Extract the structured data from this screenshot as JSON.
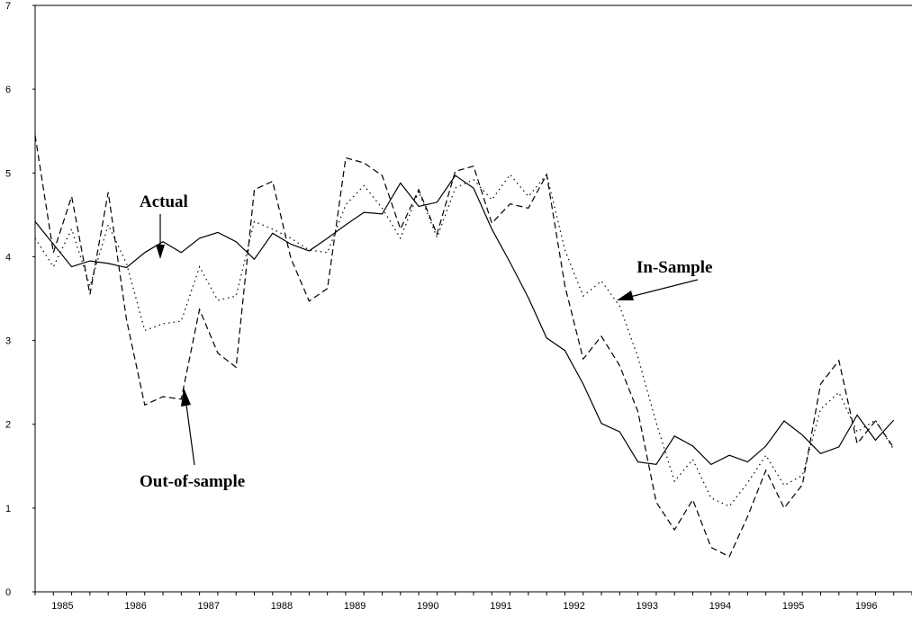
{
  "chart_data": {
    "type": "line",
    "title": "",
    "xlabel": "",
    "ylabel": "",
    "ylim": [
      0,
      7
    ],
    "x_start_year": 1984.75,
    "x_end_year": 1996.75,
    "yticks": [
      "0",
      "1",
      "2",
      "3",
      "4",
      "5",
      "6",
      "7"
    ],
    "xticks": [
      "1985",
      "1986",
      "1987",
      "1988",
      "1989",
      "1990",
      "1991",
      "1992",
      "1993",
      "1994",
      "1995",
      "1996"
    ],
    "grid": false,
    "series": [
      {
        "name": "Actual",
        "style": "solid",
        "values": [
          4.42,
          4.15,
          3.88,
          3.95,
          3.92,
          3.87,
          4.05,
          4.18,
          4.05,
          4.22,
          4.29,
          4.18,
          3.97,
          4.28,
          4.15,
          4.07,
          4.22,
          4.38,
          4.53,
          4.51,
          4.88,
          4.6,
          4.65,
          4.97,
          4.82,
          4.33,
          3.93,
          3.51,
          3.03,
          2.88,
          2.48,
          2.01,
          1.91,
          1.55,
          1.52,
          1.86,
          1.74,
          1.52,
          1.63,
          1.55,
          1.74,
          2.04,
          1.87,
          1.65,
          1.73,
          2.11,
          1.81,
          2.05
        ]
      },
      {
        "name": "In-Sample",
        "style": "dotted",
        "values": [
          4.22,
          3.88,
          4.33,
          3.65,
          4.38,
          3.92,
          3.12,
          3.2,
          3.23,
          3.88,
          3.48,
          3.53,
          4.42,
          4.33,
          4.22,
          4.08,
          4.05,
          4.62,
          4.85,
          4.58,
          4.22,
          4.78,
          4.23,
          4.82,
          4.92,
          4.68,
          4.98,
          4.72,
          4.98,
          4.08,
          3.53,
          3.71,
          3.41,
          2.8,
          2.02,
          1.32,
          1.58,
          1.12,
          1.02,
          1.3,
          1.63,
          1.27,
          1.39,
          2.18,
          2.38,
          1.91,
          2.05,
          1.7
        ]
      },
      {
        "name": "Out-of-sample",
        "style": "dashed",
        "values": [
          5.45,
          4.05,
          4.72,
          3.55,
          4.77,
          3.25,
          2.23,
          2.33,
          2.3,
          3.37,
          2.85,
          2.68,
          4.8,
          4.9,
          3.98,
          3.47,
          3.62,
          5.18,
          5.12,
          4.97,
          4.33,
          4.8,
          4.27,
          5.02,
          5.08,
          4.4,
          4.63,
          4.58,
          4.98,
          3.65,
          2.78,
          3.05,
          2.7,
          2.15,
          1.07,
          0.74,
          1.1,
          0.53,
          0.42,
          0.9,
          1.45,
          1.0,
          1.28,
          2.48,
          2.76,
          1.77,
          2.04,
          1.72
        ]
      }
    ],
    "annotations": [
      {
        "text": "Actual",
        "series": "Actual",
        "at_index": 7
      },
      {
        "text": "In-Sample",
        "series": "In-Sample",
        "at_index": 30
      },
      {
        "text": "Out-of-sample",
        "series": "Out-of-sample",
        "at_index": 8
      }
    ]
  }
}
